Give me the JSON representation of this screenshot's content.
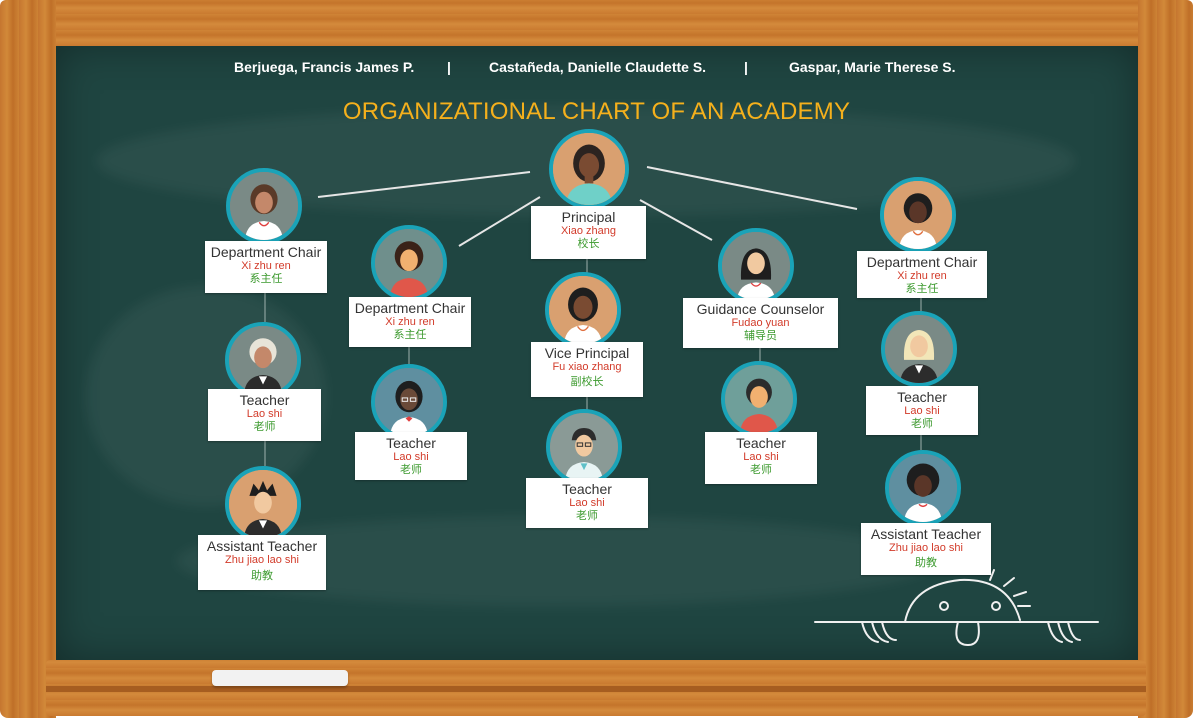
{
  "authors": [
    "Berjuega, Francis James P.",
    "|",
    "Castañeda, Danielle Claudette S.",
    "|",
    "Gaspar, Marie Therese S."
  ],
  "title": "ORGANIZATIONAL CHART OF AN ACADEMY",
  "colors": {
    "board": "#1f4541",
    "title": "#f5b01c",
    "pinyin": "#d23b2a",
    "hanzi": "#3c9a2e",
    "avatar_ring": "#1aa3b8"
  },
  "nodes": {
    "principal": {
      "role": "Principal",
      "pinyin": "Xiao zhang",
      "hanzi": "校长"
    },
    "vice_principal": {
      "role": "Vice Principal",
      "pinyin": "Fu xiao zhang",
      "hanzi": "副校长"
    },
    "teacher_center": {
      "role": "Teacher",
      "pinyin": "Lao shi",
      "hanzi": "老师"
    },
    "dept_chair_1": {
      "role": "Department Chair",
      "pinyin": "Xi zhu ren",
      "hanzi": "系主任"
    },
    "teacher_1": {
      "role": "Teacher",
      "pinyin": "Lao shi",
      "hanzi": "老师"
    },
    "assistant_1": {
      "role": "Assistant Teacher",
      "pinyin": "Zhu jiao lao shi",
      "hanzi": "助教"
    },
    "dept_chair_2": {
      "role": "Department Chair",
      "pinyin": "Xi zhu ren",
      "hanzi": "系主任"
    },
    "teacher_2": {
      "role": "Teacher",
      "pinyin": "Lao shi",
      "hanzi": "老师"
    },
    "counselor": {
      "role": "Guidance Counselor",
      "pinyin": "Fudao yuan",
      "hanzi": "辅导员"
    },
    "teacher_3": {
      "role": "Teacher",
      "pinyin": "Lao shi",
      "hanzi": "老师"
    },
    "dept_chair_3": {
      "role": "Department Chair",
      "pinyin": "Xi zhu ren",
      "hanzi": "系主任"
    },
    "teacher_4": {
      "role": "Teacher",
      "pinyin": "Lao shi",
      "hanzi": "老师"
    },
    "assistant_2": {
      "role": "Assistant Teacher",
      "pinyin": "Zhu jiao lao shi",
      "hanzi": "助教"
    }
  }
}
